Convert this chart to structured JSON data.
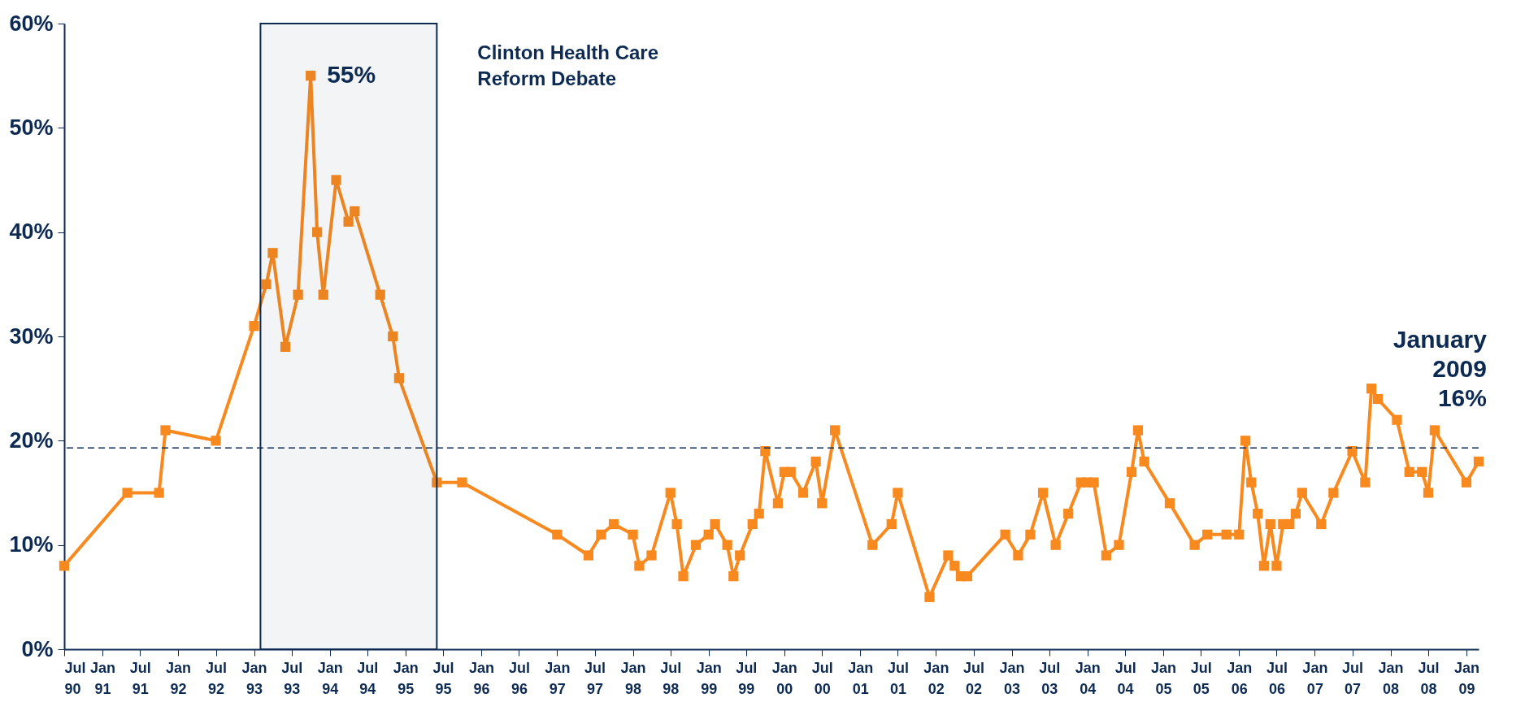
{
  "chart_data": {
    "type": "line",
    "x": [
      "1990-07",
      "1991-05",
      "1991-10",
      "1991-11",
      "1992-07",
      "1993-01",
      "1993-03",
      "1993-04",
      "1993-06",
      "1993-08",
      "1993-10",
      "1993-11",
      "1993-12",
      "1994-02",
      "1994-04",
      "1994-05",
      "1994-09",
      "1994-11",
      "1994-12",
      "1995-06",
      "1995-10",
      "1997-01",
      "1997-06",
      "1997-08",
      "1997-10",
      "1998-01",
      "1998-02",
      "1998-04",
      "1998-07",
      "1998-08",
      "1998-09",
      "1998-11",
      "1999-01",
      "1999-02",
      "1999-04",
      "1999-05",
      "1999-06",
      "1999-08",
      "1999-09",
      "1999-10",
      "1999-12",
      "2000-01",
      "2000-02",
      "2000-04",
      "2000-06",
      "2000-07",
      "2000-09",
      "2001-03",
      "2001-06",
      "2001-07",
      "2001-12",
      "2002-03",
      "2002-04",
      "2002-05",
      "2002-06",
      "2002-12",
      "2003-02",
      "2003-04",
      "2003-06",
      "2003-08",
      "2003-10",
      "2003-12",
      "2004-01",
      "2004-02",
      "2004-04",
      "2004-06",
      "2004-08",
      "2004-09",
      "2004-10",
      "2005-02",
      "2005-06",
      "2005-08",
      "2005-11",
      "2006-01",
      "2006-02",
      "2006-03",
      "2006-04",
      "2006-05",
      "2006-06",
      "2006-07",
      "2006-08",
      "2006-09",
      "2006-10",
      "2006-11",
      "2007-02",
      "2007-04",
      "2007-07",
      "2007-09",
      "2007-10",
      "2007-11",
      "2008-02",
      "2008-04",
      "2008-06",
      "2008-07",
      "2008-08",
      "2009-01",
      "2009-03"
    ],
    "series": [
      {
        "color": "#f7891f",
        "values": [
          8,
          15,
          15,
          21,
          20,
          31,
          35,
          38,
          29,
          34,
          55,
          40,
          34,
          45,
          41,
          42,
          34,
          30,
          26,
          16,
          16,
          11,
          9,
          11,
          12,
          11,
          8,
          9,
          15,
          12,
          7,
          10,
          11,
          12,
          10,
          7,
          9,
          12,
          13,
          19,
          14,
          17,
          17,
          15,
          18,
          14,
          21,
          10,
          12,
          15,
          5,
          9,
          8,
          7,
          7,
          11,
          9,
          11,
          15,
          10,
          13,
          16,
          16,
          16,
          9,
          10,
          17,
          21,
          18,
          14,
          10,
          11,
          11,
          11,
          20,
          16,
          13,
          8,
          12,
          8,
          12,
          12,
          13,
          15,
          12,
          15,
          19,
          16,
          25,
          24,
          22,
          17,
          17,
          15,
          21,
          16,
          18
        ]
      }
    ],
    "xlim": [
      "1990-07",
      "2009-03"
    ],
    "xticks": [
      {
        "value": "1990-07",
        "label": "Jul 90"
      },
      {
        "value": "1991-01",
        "label": "Jan 91"
      },
      {
        "value": "1991-07",
        "label": "Jul 91"
      },
      {
        "value": "1992-01",
        "label": "Jan 92"
      },
      {
        "value": "1992-07",
        "label": "Jul 92"
      },
      {
        "value": "1993-01",
        "label": "Jan 93"
      },
      {
        "value": "1993-07",
        "label": "Jul 93"
      },
      {
        "value": "1994-01",
        "label": "Jan 94"
      },
      {
        "value": "1994-07",
        "label": "Jul 94"
      },
      {
        "value": "1995-01",
        "label": "Jan 95"
      },
      {
        "value": "1995-07",
        "label": "Jul 95"
      },
      {
        "value": "1996-01",
        "label": "Jan 96"
      },
      {
        "value": "1996-07",
        "label": "Jul 96"
      },
      {
        "value": "1997-01",
        "label": "Jan 97"
      },
      {
        "value": "1997-07",
        "label": "Jul 97"
      },
      {
        "value": "1998-01",
        "label": "Jan 98"
      },
      {
        "value": "1998-07",
        "label": "Jul 98"
      },
      {
        "value": "1999-01",
        "label": "Jan 99"
      },
      {
        "value": "1999-07",
        "label": "Jul 99"
      },
      {
        "value": "2000-01",
        "label": "Jan 00"
      },
      {
        "value": "2000-07",
        "label": "Jul 00"
      },
      {
        "value": "2001-01",
        "label": "Jan 01"
      },
      {
        "value": "2001-07",
        "label": "Jul 01"
      },
      {
        "value": "2002-01",
        "label": "Jan 02"
      },
      {
        "value": "2002-07",
        "label": "Jul 02"
      },
      {
        "value": "2003-01",
        "label": "Jan 03"
      },
      {
        "value": "2003-07",
        "label": "Jul 03"
      },
      {
        "value": "2004-01",
        "label": "Jan 04"
      },
      {
        "value": "2004-07",
        "label": "Jul 04"
      },
      {
        "value": "2005-01",
        "label": "Jan 05"
      },
      {
        "value": "2005-07",
        "label": "Jul 05"
      },
      {
        "value": "2006-01",
        "label": "Jan 06"
      },
      {
        "value": "2006-07",
        "label": "Jul 06"
      },
      {
        "value": "2007-01",
        "label": "Jan 07"
      },
      {
        "value": "2007-07",
        "label": "Jul 07"
      },
      {
        "value": "2008-01",
        "label": "Jan 08"
      },
      {
        "value": "2008-07",
        "label": "Jul 08"
      },
      {
        "value": "2009-01",
        "label": "Jan 09"
      }
    ],
    "ylim": [
      0,
      60
    ],
    "yticks": [
      {
        "value": 0,
        "label": "0%"
      },
      {
        "value": 10,
        "label": "10%"
      },
      {
        "value": 20,
        "label": "20%"
      },
      {
        "value": 30,
        "label": "30%"
      },
      {
        "value": 40,
        "label": "40%"
      },
      {
        "value": 50,
        "label": "50%"
      },
      {
        "value": 60,
        "label": "60%"
      }
    ],
    "ref_lines": [
      {
        "axis": "y",
        "value": 19.3,
        "color": "#0d2a52",
        "line_style": "dashed"
      }
    ],
    "bands": [
      {
        "axis": "x",
        "from": "1993-02",
        "to": "1995-06",
        "label": "Clinton Health Care Reform Debate",
        "color": "#0d2a52"
      }
    ],
    "annotations": [
      {
        "text": "55%",
        "x": "1993-10",
        "y": 55
      },
      {
        "text": "January 2009 16%",
        "x": "2009-01",
        "y": 16
      }
    ],
    "marker": "square",
    "line_style": "solid",
    "grid": false
  }
}
